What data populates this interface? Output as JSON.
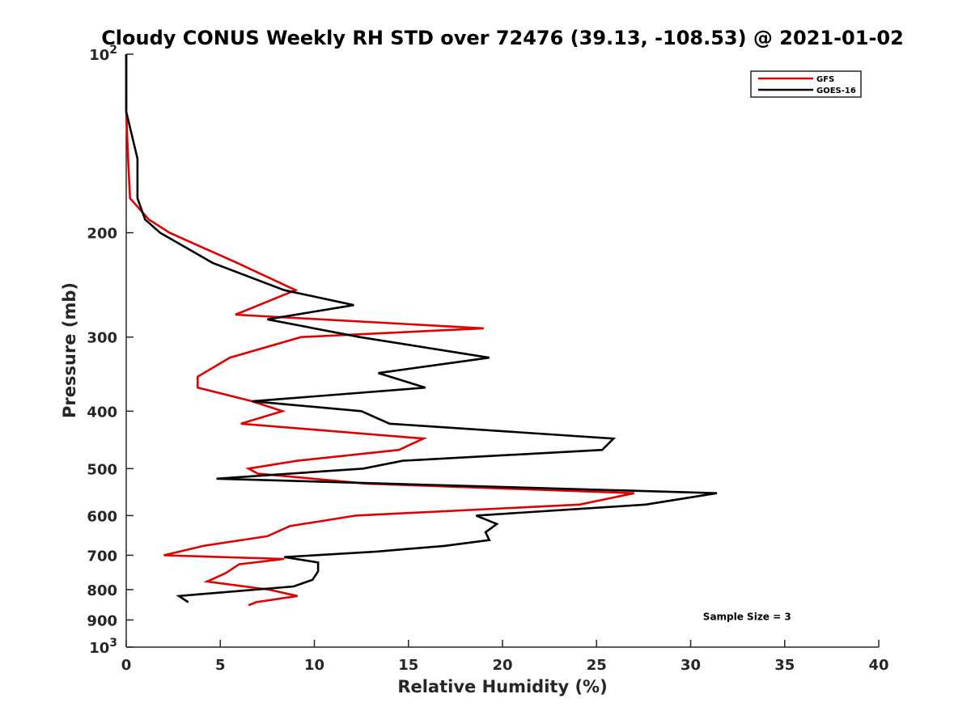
{
  "chart_data": {
    "type": "line",
    "title": "Cloudy CONUS Weekly RH STD over 72476 (39.13, -108.53) @ 2021-01-02",
    "xlabel": "Relative Humidity (%)",
    "ylabel": "Pressure (mb)",
    "xlim": [
      0,
      40
    ],
    "ylim": [
      100,
      1000
    ],
    "y_scale": "log",
    "y_reversed": true,
    "grid": false,
    "legend_position": "top-right",
    "x_ticks": [
      0,
      5,
      10,
      15,
      20,
      25,
      30,
      35,
      40
    ],
    "y_ticks": [
      {
        "value": 100,
        "label": "10",
        "sup": "2"
      },
      {
        "value": 200,
        "label": "200",
        "sup": ""
      },
      {
        "value": 300,
        "label": "300",
        "sup": ""
      },
      {
        "value": 400,
        "label": "400",
        "sup": ""
      },
      {
        "value": 500,
        "label": "500",
        "sup": ""
      },
      {
        "value": 600,
        "label": "600",
        "sup": ""
      },
      {
        "value": 700,
        "label": "700",
        "sup": ""
      },
      {
        "value": 800,
        "label": "800",
        "sup": ""
      },
      {
        "value": 900,
        "label": "900",
        "sup": ""
      },
      {
        "value": 1000,
        "label": "10",
        "sup": "3"
      }
    ],
    "series": [
      {
        "name": "GFS",
        "color": "#e00000",
        "points": [
          [
            0.0,
            100
          ],
          [
            0.0,
            125
          ],
          [
            0.1,
            150
          ],
          [
            0.2,
            175
          ],
          [
            1.2,
            190
          ],
          [
            2.3,
            200
          ],
          [
            5.9,
            225
          ],
          [
            9.0,
            250
          ],
          [
            5.8,
            275
          ],
          [
            19.0,
            290
          ],
          [
            9.3,
            300
          ],
          [
            5.5,
            325
          ],
          [
            3.8,
            350
          ],
          [
            3.8,
            365
          ],
          [
            6.7,
            385
          ],
          [
            8.3,
            400
          ],
          [
            6.1,
            420
          ],
          [
            15.8,
            445
          ],
          [
            14.5,
            465
          ],
          [
            9.1,
            485
          ],
          [
            6.5,
            500
          ],
          [
            7.0,
            510
          ],
          [
            12.8,
            530
          ],
          [
            27.0,
            550
          ],
          [
            24.1,
            575
          ],
          [
            12.2,
            600
          ],
          [
            8.7,
            625
          ],
          [
            7.5,
            650
          ],
          [
            4.1,
            675
          ],
          [
            2.0,
            700
          ],
          [
            8.4,
            710
          ],
          [
            6.0,
            725
          ],
          [
            5.3,
            750
          ],
          [
            4.3,
            775
          ],
          [
            7.6,
            800
          ],
          [
            9.1,
            820
          ],
          [
            6.9,
            840
          ],
          [
            6.5,
            850
          ]
        ]
      },
      {
        "name": "GOES-16",
        "color": "#000000",
        "points": [
          [
            0.0,
            100
          ],
          [
            0.0,
            125
          ],
          [
            0.6,
            150
          ],
          [
            0.6,
            175
          ],
          [
            1.0,
            190
          ],
          [
            1.8,
            200
          ],
          [
            4.6,
            225
          ],
          [
            8.4,
            250
          ],
          [
            12.1,
            265
          ],
          [
            7.5,
            280
          ],
          [
            12.4,
            300
          ],
          [
            19.3,
            325
          ],
          [
            13.4,
            345
          ],
          [
            15.9,
            365
          ],
          [
            6.7,
            385
          ],
          [
            12.5,
            400
          ],
          [
            14.0,
            420
          ],
          [
            25.9,
            445
          ],
          [
            25.3,
            465
          ],
          [
            14.7,
            485
          ],
          [
            12.6,
            500
          ],
          [
            4.8,
            520
          ],
          [
            31.4,
            550
          ],
          [
            27.6,
            575
          ],
          [
            18.6,
            600
          ],
          [
            19.7,
            620
          ],
          [
            19.1,
            640
          ],
          [
            19.3,
            660
          ],
          [
            16.9,
            675
          ],
          [
            13.3,
            690
          ],
          [
            8.4,
            705
          ],
          [
            10.2,
            720
          ],
          [
            10.2,
            745
          ],
          [
            9.9,
            770
          ],
          [
            8.9,
            790
          ],
          [
            2.8,
            820
          ],
          [
            3.3,
            840
          ]
        ]
      }
    ],
    "annotations": [
      {
        "text": "Sample Size = 3",
        "x": 33,
        "y": 900
      }
    ]
  }
}
